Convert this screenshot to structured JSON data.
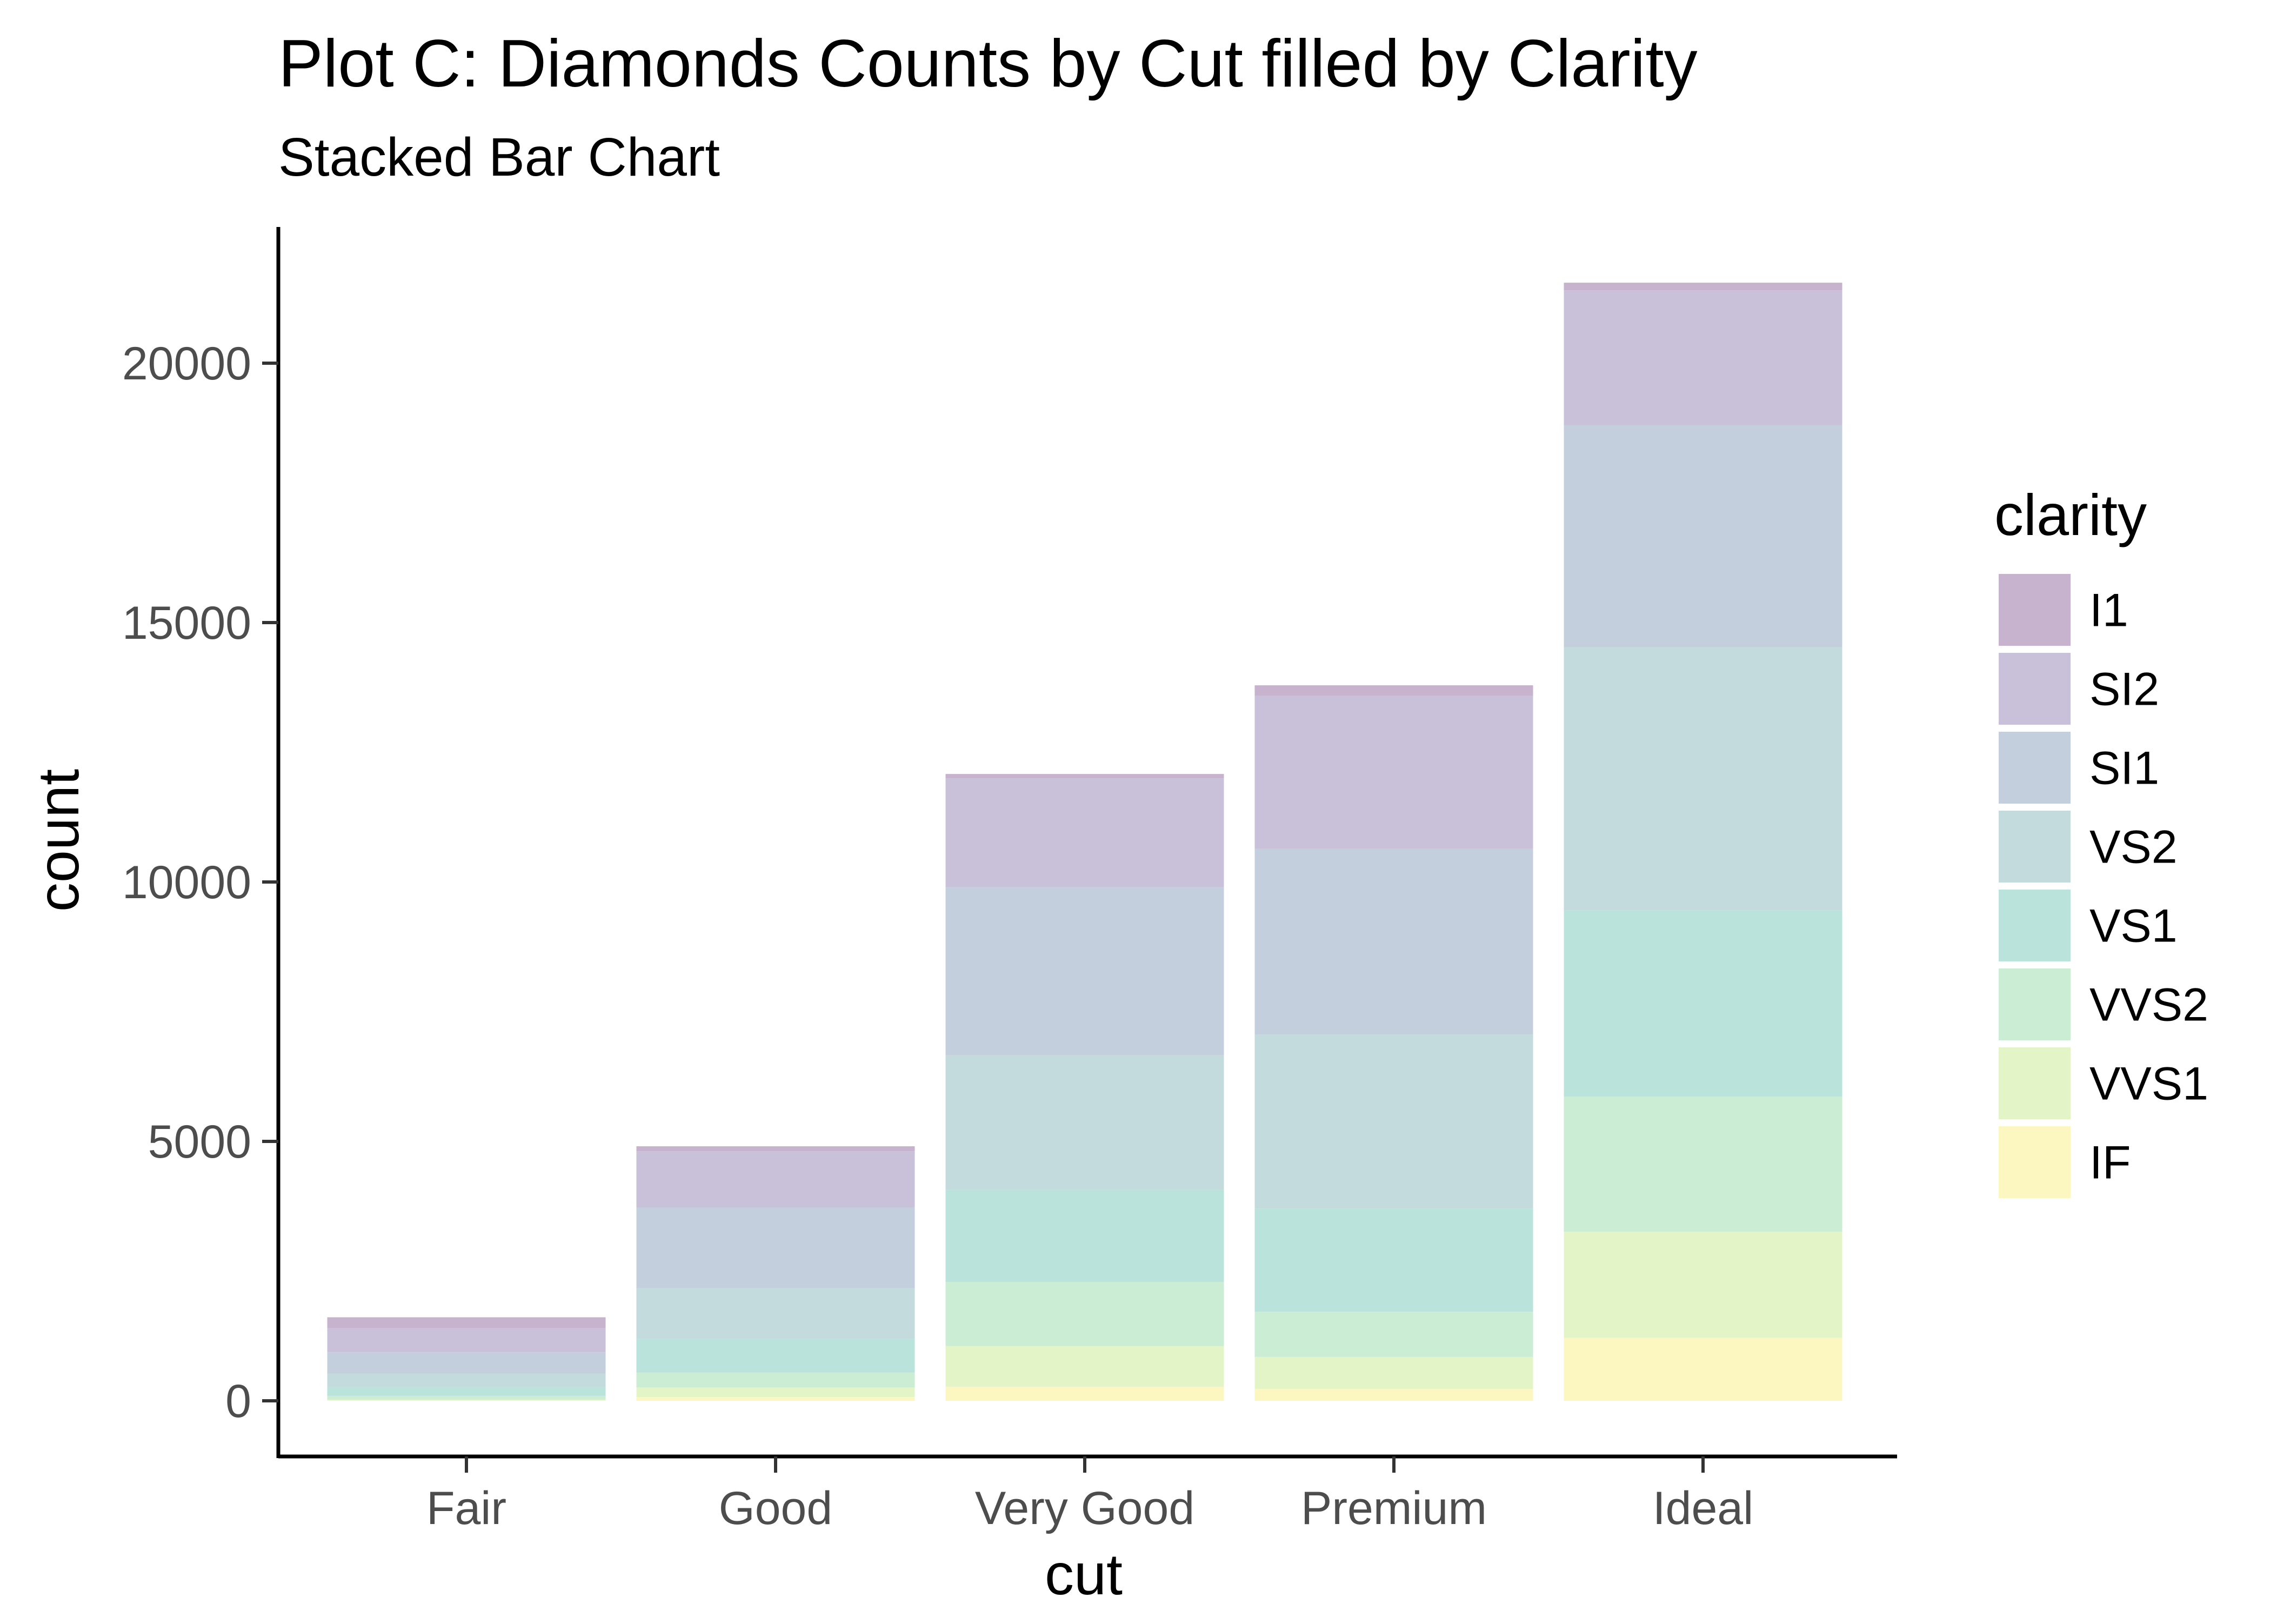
{
  "chart_data": {
    "type": "bar",
    "stacked": true,
    "title": "Plot C: Diamonds Counts by Cut filled by Clarity",
    "subtitle": "Stacked Bar Chart",
    "xlabel": "cut",
    "ylabel": "count",
    "ylim": [
      -1000,
      22500
    ],
    "yticks": [
      0,
      5000,
      10000,
      15000,
      20000
    ],
    "categories": [
      "Fair",
      "Good",
      "Very Good",
      "Premium",
      "Ideal"
    ],
    "legend_title": "clarity",
    "legend_position": "right",
    "grid": false,
    "series": [
      {
        "name": "I1",
        "color": "#c7b3cd",
        "values": [
          210,
          96,
          84,
          205,
          146
        ]
      },
      {
        "name": "SI2",
        "color": "#c8c1d9",
        "values": [
          466,
          1081,
          2100,
          2949,
          2598
        ]
      },
      {
        "name": "SI1",
        "color": "#c4cfdd",
        "values": [
          408,
          1560,
          3240,
          3575,
          4282
        ]
      },
      {
        "name": "VS2",
        "color": "#c3dbdd",
        "values": [
          261,
          978,
          2591,
          3357,
          5071
        ]
      },
      {
        "name": "VS1",
        "color": "#bae3dc",
        "values": [
          170,
          648,
          1775,
          1989,
          3589
        ]
      },
      {
        "name": "VVS2",
        "color": "#caedd3",
        "values": [
          69,
          286,
          1235,
          870,
          2606
        ]
      },
      {
        "name": "VVS1",
        "color": "#e3f4c6",
        "values": [
          17,
          186,
          789,
          616,
          2047
        ]
      },
      {
        "name": "IF",
        "color": "#fcf7c1",
        "values": [
          9,
          71,
          268,
          230,
          1212
        ]
      }
    ]
  }
}
